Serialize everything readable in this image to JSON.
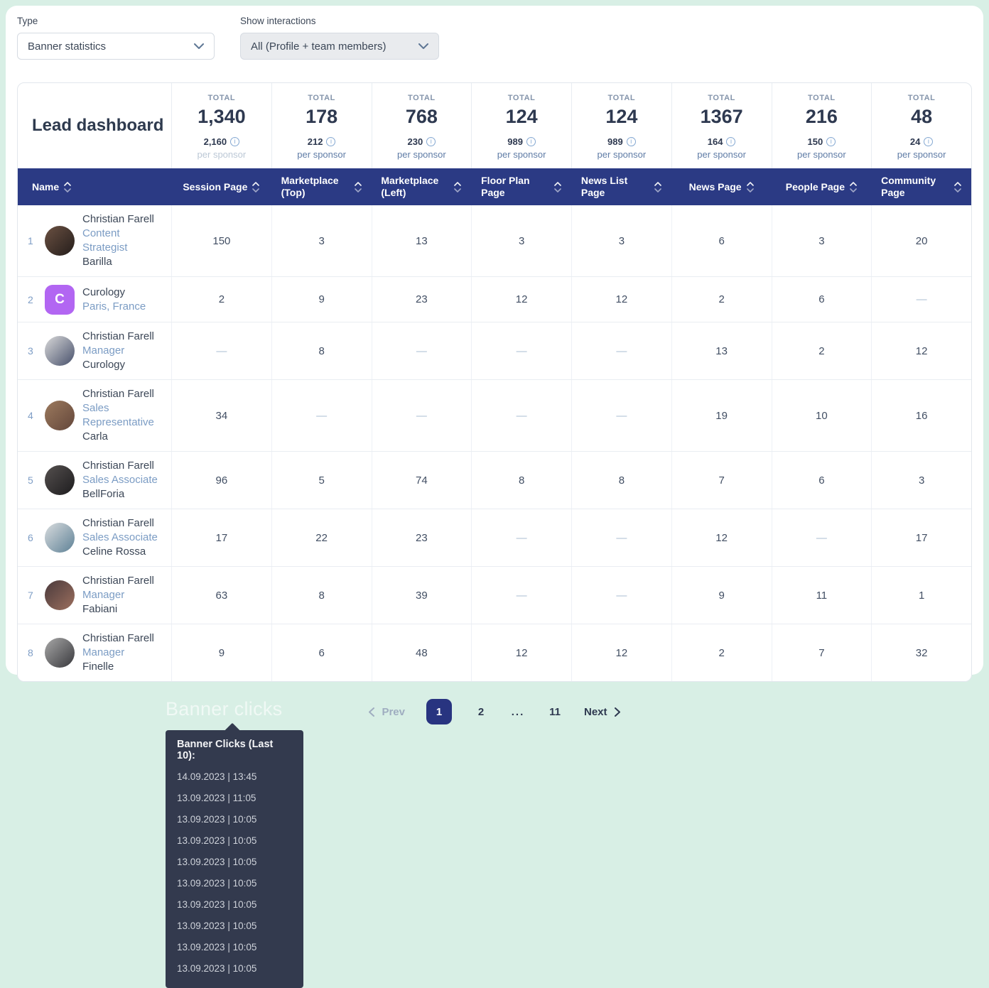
{
  "colors": {
    "background_mint": "#d8efe5",
    "header_navy": "#2b3a84",
    "active_page_navy": "#283480",
    "link_blue": "#7b9cc4",
    "tooltip_bg": "#333a4e",
    "curology_purple": "#b266f2"
  },
  "controls": {
    "type_label": "Type",
    "type_value": "Banner statistics",
    "interactions_label": "Show interactions",
    "interactions_value": "All (Profile + team members)"
  },
  "dashboard": {
    "title": "Lead dashboard",
    "totals": [
      {
        "label": "TOTAL",
        "value": "1,340",
        "per_value": "2,160",
        "per_label": "per sponsor",
        "muted": true
      },
      {
        "label": "TOTAL",
        "value": "178",
        "per_value": "212",
        "per_label": "per sponsor"
      },
      {
        "label": "TOTAL",
        "value": "768",
        "per_value": "230",
        "per_label": "per sponsor"
      },
      {
        "label": "TOTAL",
        "value": "124",
        "per_value": "989",
        "per_label": "per sponsor"
      },
      {
        "label": "TOTAL",
        "value": "124",
        "per_value": "989",
        "per_label": "per sponsor"
      },
      {
        "label": "TOTAL",
        "value": "1367",
        "per_value": "164",
        "per_label": "per sponsor"
      },
      {
        "label": "TOTAL",
        "value": "216",
        "per_value": "150",
        "per_label": "per sponsor"
      },
      {
        "label": "TOTAL",
        "value": "48",
        "per_value": "24",
        "per_label": "per sponsor"
      }
    ],
    "columns": [
      "Name",
      "Session Page",
      "Marketplace (Top)",
      "Marketplace (Left)",
      "Floor Plan Page",
      "News List Page",
      "News Page",
      "People Page",
      "Community Page"
    ],
    "rows": [
      {
        "num": "1",
        "name": "Christian Farell",
        "subtitle": "Content Strategist",
        "detail": "Barilla",
        "avatar": {
          "kind": "photo",
          "colors": [
            "#6b5142",
            "#241d1b"
          ]
        },
        "values": [
          "150",
          "3",
          "13",
          "3",
          "3",
          "6",
          "3",
          "20"
        ]
      },
      {
        "num": "2",
        "name": "Curology",
        "subtitle": "Paris, France",
        "detail": "",
        "avatar": {
          "kind": "initial",
          "letter": "C",
          "bg": "#b266f2"
        },
        "values": [
          "2",
          "9",
          "23",
          "12",
          "12",
          "2",
          "6",
          "—"
        ]
      },
      {
        "num": "3",
        "name": "Christian Farell",
        "subtitle": "Manager",
        "detail": "Curology",
        "avatar": {
          "kind": "photo",
          "colors": [
            "#d9d9d9",
            "#47506b"
          ]
        },
        "values": [
          "—",
          "8",
          "—",
          "—",
          "—",
          "13",
          "2",
          "12"
        ]
      },
      {
        "num": "4",
        "name": "Christian Farell",
        "subtitle": "Sales Representative",
        "detail": "Carla",
        "avatar": {
          "kind": "photo",
          "colors": [
            "#9c7a5e",
            "#63463a"
          ]
        },
        "values": [
          "34",
          "—",
          "—",
          "—",
          "—",
          "19",
          "10",
          "16"
        ]
      },
      {
        "num": "5",
        "name": "Christian Farell",
        "subtitle": "Sales Associate",
        "detail": "BellForia",
        "avatar": {
          "kind": "photo",
          "colors": [
            "#55504f",
            "#1d1c1e"
          ]
        },
        "values": [
          "96",
          "5",
          "74",
          "8",
          "8",
          "7",
          "6",
          "3"
        ]
      },
      {
        "num": "6",
        "name": "Christian Farell",
        "subtitle": "Sales Associate",
        "detail": "Celine Rossa",
        "avatar": {
          "kind": "photo",
          "colors": [
            "#d9dcde",
            "#5e8196"
          ]
        },
        "values": [
          "17",
          "22",
          "23",
          "—",
          "—",
          "12",
          "—",
          "17"
        ]
      },
      {
        "num": "7",
        "name": "Christian Farell",
        "subtitle": "Manager",
        "detail": "Fabiani",
        "avatar": {
          "kind": "photo",
          "colors": [
            "#4a3a3c",
            "#9c6f5e"
          ]
        },
        "values": [
          "63",
          "8",
          "39",
          "—",
          "—",
          "9",
          "11",
          "1"
        ]
      },
      {
        "num": "8",
        "name": "Christian Farell",
        "subtitle": "Manager",
        "detail": "Finelle",
        "avatar": {
          "kind": "photo",
          "colors": [
            "#a8a8a8",
            "#38383c"
          ]
        },
        "values": [
          "9",
          "6",
          "48",
          "12",
          "12",
          "2",
          "7",
          "32"
        ]
      }
    ]
  },
  "pagination": {
    "prev_label": "Prev",
    "next_label": "Next",
    "pages": [
      "1",
      "2",
      "...",
      "11"
    ],
    "active_page": "1"
  },
  "banner_clicks": {
    "ghost_label": "Banner clicks",
    "tooltip_title": "Banner Clicks (Last 10):",
    "entries": [
      "14.09.2023 | 13:45",
      "13.09.2023 | 11:05",
      "13.09.2023 | 10:05",
      "13.09.2023 | 10:05",
      "13.09.2023 | 10:05",
      "13.09.2023 | 10:05",
      "13.09.2023 | 10:05",
      "13.09.2023 | 10:05",
      "13.09.2023 | 10:05",
      "13.09.2023 | 10:05"
    ]
  }
}
